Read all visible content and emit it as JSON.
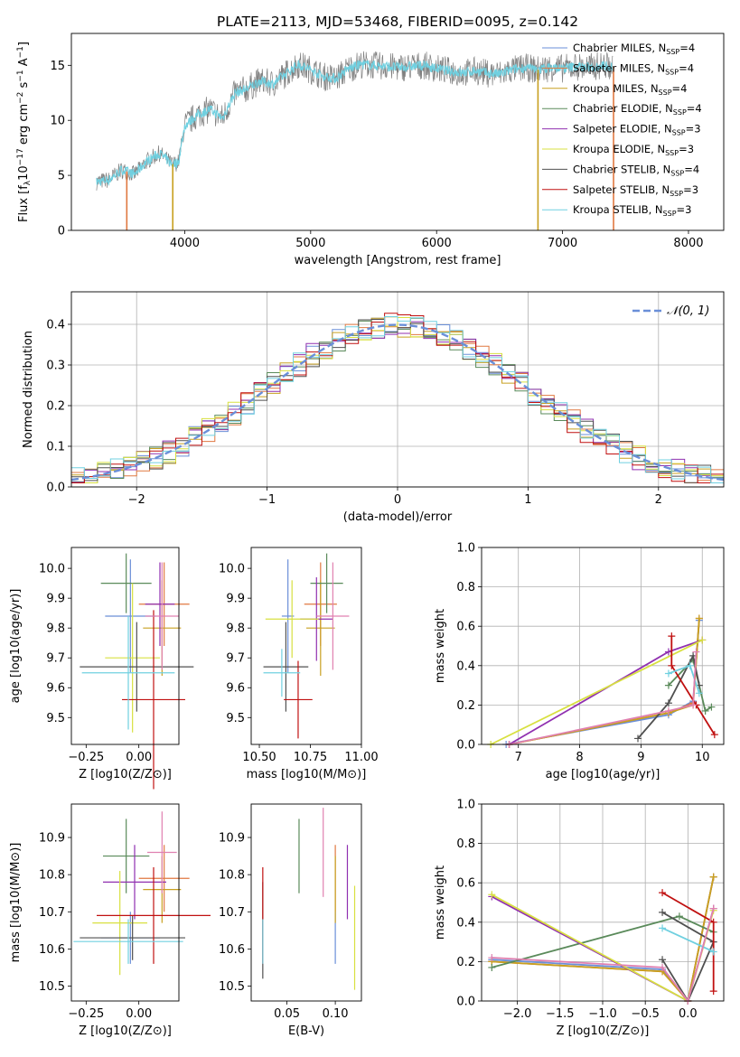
{
  "figure_title": "PLATE=2113, MJD=53468, FIBERID=0095, z=0.142",
  "legend_entries": [
    {
      "name": "Chabrier MILES, N",
      "sub": "SSP",
      "tail": "=4",
      "color": "#6a8fd8"
    },
    {
      "name": "Salpeter MILES, N",
      "sub": "SSP",
      "tail": "=4",
      "color": "#e07840"
    },
    {
      "name": "Kroupa MILES, N",
      "sub": "SSP",
      "tail": "=4",
      "color": "#c8a020"
    },
    {
      "name": "Chabrier ELODIE, N",
      "sub": "SSP",
      "tail": "=4",
      "color": "#5a8a5a"
    },
    {
      "name": "Salpeter ELODIE, N",
      "sub": "SSP",
      "tail": "=3",
      "color": "#9030b0"
    },
    {
      "name": "Kroupa ELODIE, N",
      "sub": "SSP",
      "tail": "=3",
      "color": "#d8e040"
    },
    {
      "name": "Chabrier STELIB, N",
      "sub": "SSP",
      "tail": "=4",
      "color": "#505050"
    },
    {
      "name": "Salpeter STELIB, N",
      "sub": "SSP",
      "tail": "=3",
      "color": "#c01010"
    },
    {
      "name": "Kroupa STELIB, N",
      "sub": "SSP",
      "tail": "=3",
      "color": "#70d0e0"
    }
  ],
  "normal_legend": "𝒩(0, 1)",
  "chart_data": [
    {
      "id": "spectrum",
      "type": "line",
      "xlabel": "wavelength [Angstrom, rest frame]",
      "ylabel": "Flux [f_λ 10^-17 erg cm^-2 s^-1 A^-1]",
      "xlim": [
        3100,
        8280
      ],
      "ylim": [
        0,
        17.9
      ],
      "xticks": [
        "4000",
        "5000",
        "6000",
        "7000",
        "8000"
      ],
      "yticks": [
        "0",
        "5",
        "10",
        "15"
      ],
      "data_color": "#808080",
      "model_color": "#70d0e0",
      "data_points": [
        [
          3300,
          4.4
        ],
        [
          3400,
          4.6
        ],
        [
          3500,
          5.5
        ],
        [
          3600,
          5.1
        ],
        [
          3700,
          6.3
        ],
        [
          3800,
          7.0
        ],
        [
          3900,
          6.0
        ],
        [
          3950,
          6.2
        ],
        [
          4000,
          9.5
        ],
        [
          4100,
          10.5
        ],
        [
          4200,
          11.0
        ],
        [
          4300,
          10.2
        ],
        [
          4400,
          12.5
        ],
        [
          4500,
          12.9
        ],
        [
          4600,
          13.6
        ],
        [
          4700,
          13.3
        ],
        [
          4800,
          14.2
        ],
        [
          4900,
          15.1
        ],
        [
          5000,
          14.6
        ],
        [
          5100,
          14.0
        ],
        [
          5200,
          13.8
        ],
        [
          5300,
          14.7
        ],
        [
          5400,
          15.1
        ],
        [
          5500,
          15.0
        ],
        [
          5600,
          14.9
        ],
        [
          5700,
          14.8
        ],
        [
          5800,
          14.9
        ],
        [
          5900,
          15.0
        ],
        [
          6000,
          14.7
        ],
        [
          6100,
          14.5
        ],
        [
          6200,
          14.3
        ],
        [
          6300,
          14.5
        ],
        [
          6400,
          14.3
        ],
        [
          6500,
          14.2
        ],
        [
          6600,
          14.6
        ],
        [
          6700,
          14.8
        ],
        [
          6800,
          14.6
        ],
        [
          6900,
          14.8
        ],
        [
          7000,
          14.7
        ],
        [
          7100,
          14.9
        ],
        [
          7200,
          14.8
        ],
        [
          7300,
          15.0
        ],
        [
          7400,
          14.9
        ]
      ],
      "dropouts": [
        3540,
        3905,
        6805,
        7405
      ]
    },
    {
      "id": "residuals",
      "type": "histogram",
      "xlabel": "(data-model)/error",
      "ylabel": "Normed distribution",
      "xlim": [
        -2.5,
        2.5
      ],
      "ylim": [
        0,
        0.48
      ],
      "xticks": [
        "−2",
        "−1",
        "0",
        "1",
        "2"
      ],
      "yticks": [
        "0.0",
        "0.1",
        "0.2",
        "0.3",
        "0.4"
      ],
      "bin_width": 0.1,
      "grid": true,
      "legend_position": "top-right"
    },
    {
      "id": "age-vs-Z",
      "type": "errorbar",
      "xlabel": "Z [log10(Z/Z⊙)]",
      "ylabel": "age [log10(age/yr)]",
      "xlim": [
        -0.32,
        0.19
      ],
      "ylim": [
        9.41,
        10.07
      ],
      "xticks": [
        "−0.25",
        "0.00"
      ],
      "yticks": [
        "9.5",
        "9.6",
        "9.7",
        "9.8",
        "9.9",
        "10.0"
      ],
      "points": [
        {
          "x": -0.04,
          "xerr": 0.12,
          "y": 9.84,
          "yerr": 0.19,
          "color": "#6a8fd8"
        },
        {
          "x": 0.12,
          "xerr": 0.12,
          "y": 9.88,
          "yerr": 0.14,
          "color": "#e07840"
        },
        {
          "x": 0.11,
          "xerr": 0.09,
          "y": 9.8,
          "yerr": 0.16,
          "color": "#c8a020"
        },
        {
          "x": -0.06,
          "xerr": 0.12,
          "y": 9.95,
          "yerr": 0.1,
          "color": "#5a8a5a"
        },
        {
          "x": 0.1,
          "xerr": 0.07,
          "y": 9.88,
          "yerr": 0.14,
          "color": "#9030b0"
        },
        {
          "x": -0.03,
          "xerr": 0.13,
          "y": 9.7,
          "yerr": 0.25,
          "color": "#d8e040"
        },
        {
          "x": -0.01,
          "xerr": 0.27,
          "y": 9.67,
          "yerr": 0.15,
          "color": "#505050"
        },
        {
          "x": 0.07,
          "xerr": 0.15,
          "y": 9.56,
          "yerr": 0.3,
          "color": "#c01010"
        },
        {
          "x": -0.05,
          "xerr": 0.22,
          "y": 9.65,
          "yerr": 0.19,
          "color": "#70d0e0"
        },
        {
          "x": 0.11,
          "xerr": 0.08,
          "y": 9.84,
          "yerr": 0.18,
          "color": "#e080b0"
        }
      ]
    },
    {
      "id": "age-vs-mass",
      "type": "errorbar",
      "xlabel": "mass [log10(M/M⊙)]",
      "ylabel": "",
      "xlim": [
        10.46,
        11.0
      ],
      "ylim": [
        9.41,
        10.07
      ],
      "xticks": [
        "10.50",
        "10.75",
        "11.00"
      ],
      "yticks": [
        "9.5",
        "9.6",
        "9.7",
        "9.8",
        "9.9",
        "10.0"
      ],
      "points": [
        {
          "x": 10.64,
          "xerr": 0.03,
          "y": 9.84,
          "yerr": 0.19,
          "color": "#6a8fd8"
        },
        {
          "x": 10.8,
          "xerr": 0.08,
          "y": 9.88,
          "yerr": 0.14,
          "color": "#e07840"
        },
        {
          "x": 10.8,
          "xerr": 0.07,
          "y": 9.8,
          "yerr": 0.16,
          "color": "#c8a020"
        },
        {
          "x": 10.83,
          "xerr": 0.08,
          "y": 9.95,
          "yerr": 0.1,
          "color": "#5a8a5a"
        },
        {
          "x": 10.78,
          "xerr": 0.08,
          "y": 9.83,
          "yerr": 0.14,
          "color": "#9030b0"
        },
        {
          "x": 10.66,
          "xerr": 0.13,
          "y": 9.83,
          "yerr": 0.13,
          "color": "#d8e040"
        },
        {
          "x": 10.63,
          "xerr": 0.11,
          "y": 9.67,
          "yerr": 0.15,
          "color": "#505050"
        },
        {
          "x": 10.69,
          "xerr": 0.07,
          "y": 9.56,
          "yerr": 0.13,
          "color": "#c01010"
        },
        {
          "x": 10.61,
          "xerr": 0.09,
          "y": 9.65,
          "yerr": 0.08,
          "color": "#70d0e0"
        },
        {
          "x": 10.86,
          "xerr": 0.08,
          "y": 9.84,
          "yerr": 0.18,
          "color": "#e080b0"
        }
      ]
    },
    {
      "id": "weight-vs-age",
      "type": "line",
      "xlabel": "age [log10(age/yr)]",
      "ylabel": "mass weight",
      "xlim": [
        6.4,
        10.35
      ],
      "ylim": [
        0,
        1.0
      ],
      "xticks": [
        "7",
        "8",
        "9",
        "10"
      ],
      "yticks": [
        "0.0",
        "0.2",
        "0.4",
        "0.6",
        "0.8",
        "1.0"
      ],
      "grid": true,
      "series": [
        {
          "color": "#6a8fd8",
          "points": [
            [
              6.8,
              0.0
            ],
            [
              9.45,
              0.15
            ],
            [
              9.85,
              0.22
            ],
            [
              9.95,
              0.63
            ]
          ]
        },
        {
          "color": "#e07840",
          "points": [
            [
              6.85,
              0.0
            ],
            [
              9.45,
              0.16
            ],
            [
              9.85,
              0.21
            ],
            [
              9.95,
              0.64
            ]
          ]
        },
        {
          "color": "#c8a020",
          "points": [
            [
              6.85,
              0.0
            ],
            [
              9.45,
              0.16
            ],
            [
              9.85,
              0.2
            ],
            [
              9.95,
              0.64
            ]
          ]
        },
        {
          "color": "#5a8a5a",
          "points": [
            [
              9.45,
              0.3
            ],
            [
              9.85,
              0.43
            ],
            [
              10.05,
              0.17
            ],
            [
              10.15,
              0.19
            ]
          ]
        },
        {
          "color": "#9030b0",
          "points": [
            [
              6.85,
              0.0
            ],
            [
              9.45,
              0.47
            ],
            [
              10.0,
              0.53
            ]
          ]
        },
        {
          "color": "#d8e040",
          "points": [
            [
              6.55,
              0.0
            ],
            [
              10.0,
              0.53
            ]
          ]
        },
        {
          "color": "#505050",
          "points": [
            [
              8.95,
              0.03
            ],
            [
              9.45,
              0.21
            ],
            [
              9.85,
              0.45
            ],
            [
              9.95,
              0.3
            ]
          ]
        },
        {
          "color": "#c01010",
          "points": [
            [
              9.5,
              0.55
            ],
            [
              9.5,
              0.4
            ],
            [
              9.9,
              0.2
            ],
            [
              10.2,
              0.05
            ]
          ]
        },
        {
          "color": "#70d0e0",
          "points": [
            [
              9.45,
              0.36
            ],
            [
              9.8,
              0.4
            ],
            [
              9.95,
              0.26
            ]
          ]
        },
        {
          "color": "#e080b0",
          "points": [
            [
              6.85,
              0.0
            ],
            [
              9.45,
              0.17
            ],
            [
              9.85,
              0.2
            ],
            [
              9.9,
              0.47
            ]
          ]
        }
      ]
    },
    {
      "id": "mass-vs-Z",
      "type": "errorbar",
      "xlabel": "Z [log10(Z/Z⊙)]",
      "ylabel": "mass [log10(M/M⊙)]",
      "xlim": [
        -0.32,
        0.19
      ],
      "ylim": [
        10.46,
        10.99
      ],
      "xticks": [
        "−0.25",
        "0.00"
      ],
      "yticks": [
        "10.5",
        "10.6",
        "10.7",
        "10.8",
        "10.9"
      ],
      "points": [
        {
          "x": -0.04,
          "xerr": 0.14,
          "y": 10.63,
          "yerr": 0.07,
          "color": "#6a8fd8"
        },
        {
          "x": 0.12,
          "xerr": 0.12,
          "y": 10.79,
          "yerr": 0.09,
          "color": "#e07840"
        },
        {
          "x": 0.11,
          "xerr": 0.09,
          "y": 10.76,
          "yerr": 0.09,
          "color": "#c8a020"
        },
        {
          "x": -0.06,
          "xerr": 0.11,
          "y": 10.85,
          "yerr": 0.1,
          "color": "#5a8a5a"
        },
        {
          "x": -0.02,
          "xerr": 0.15,
          "y": 10.78,
          "yerr": 0.1,
          "color": "#9030b0"
        },
        {
          "x": -0.09,
          "xerr": 0.13,
          "y": 10.67,
          "yerr": 0.14,
          "color": "#d8e040"
        },
        {
          "x": -0.03,
          "xerr": 0.25,
          "y": 10.63,
          "yerr": 0.06,
          "color": "#505050"
        },
        {
          "x": 0.07,
          "xerr": 0.27,
          "y": 10.69,
          "yerr": 0.13,
          "color": "#c01010"
        },
        {
          "x": -0.05,
          "xerr": 0.26,
          "y": 10.62,
          "yerr": 0.06,
          "color": "#70d0e0"
        },
        {
          "x": 0.11,
          "xerr": 0.07,
          "y": 10.86,
          "yerr": 0.11,
          "color": "#e080b0"
        }
      ]
    },
    {
      "id": "mass-vs-EBV",
      "type": "errorbar",
      "xlabel": "E(B-V)",
      "ylabel": "",
      "xlim": [
        0.013,
        0.127
      ],
      "ylim": [
        10.46,
        10.99
      ],
      "xticks": [
        "0.05",
        "0.10"
      ],
      "yticks": [
        "10.5",
        "10.6",
        "10.7",
        "10.8",
        "10.9"
      ],
      "points": [
        {
          "x": 0.1,
          "xerr": 0,
          "y": 10.63,
          "yerr": 0.07,
          "color": "#6a8fd8"
        },
        {
          "x": 0.1,
          "xerr": 0,
          "y": 10.79,
          "yerr": 0.09,
          "color": "#e07840"
        },
        {
          "x": 0.1,
          "xerr": 0,
          "y": 10.76,
          "yerr": 0.09,
          "color": "#c8a020"
        },
        {
          "x": 0.0625,
          "xerr": 0,
          "y": 10.85,
          "yerr": 0.1,
          "color": "#5a8a5a"
        },
        {
          "x": 0.1125,
          "xerr": 0,
          "y": 10.78,
          "yerr": 0.1,
          "color": "#9030b0"
        },
        {
          "x": 0.12,
          "xerr": 0,
          "y": 10.63,
          "yerr": 0.14,
          "color": "#d8e040"
        },
        {
          "x": 0.025,
          "xerr": 0,
          "y": 10.65,
          "yerr": 0.13,
          "color": "#505050"
        },
        {
          "x": 0.025,
          "xerr": 0,
          "y": 10.69,
          "yerr": 0.13,
          "color": "#c01010"
        },
        {
          "x": 0.025,
          "xerr": 0,
          "y": 10.62,
          "yerr": 0.06,
          "color": "#70d0e0"
        },
        {
          "x": 0.0875,
          "xerr": 0,
          "y": 10.86,
          "yerr": 0.12,
          "color": "#e080b0"
        }
      ]
    },
    {
      "id": "weight-vs-Z",
      "type": "line",
      "xlabel": "Z [log10(Z/Z⊙)]",
      "ylabel": "mass weight",
      "xlim": [
        -2.42,
        0.42
      ],
      "ylim": [
        0,
        1.0
      ],
      "xticks": [
        "−2.0",
        "−1.5",
        "−1.0",
        "−0.5",
        "0.0"
      ],
      "yticks": [
        "0.0",
        "0.2",
        "0.4",
        "0.6",
        "0.8",
        "1.0"
      ],
      "grid": true,
      "series": [
        {
          "color": "#6a8fd8",
          "points": [
            [
              -2.3,
              0.21
            ],
            [
              -0.3,
              0.16
            ],
            [
              0.0,
              0.0
            ],
            [
              0.3,
              0.63
            ]
          ]
        },
        {
          "color": "#e07840",
          "points": [
            [
              -2.3,
              0.2
            ],
            [
              -0.3,
              0.15
            ],
            [
              0.0,
              0.0
            ],
            [
              0.3,
              0.63
            ]
          ]
        },
        {
          "color": "#c8a020",
          "points": [
            [
              -2.3,
              0.2
            ],
            [
              -0.3,
              0.15
            ],
            [
              0.0,
              0.0
            ],
            [
              0.3,
              0.63
            ]
          ]
        },
        {
          "color": "#5a8a5a",
          "points": [
            [
              -2.3,
              0.17
            ],
            [
              -0.1,
              0.43
            ],
            [
              0.3,
              0.35
            ]
          ]
        },
        {
          "color": "#9030b0",
          "points": [
            [
              -2.3,
              0.53
            ],
            [
              0.0,
              0.0
            ],
            [
              0.3,
              0.47
            ]
          ]
        },
        {
          "color": "#d8e040",
          "points": [
            [
              -2.3,
              0.54
            ],
            [
              0.0,
              0.0
            ],
            [
              0.3,
              0.46
            ]
          ]
        },
        {
          "color": "#505050",
          "points": [
            [
              -0.3,
              0.45
            ],
            [
              0.3,
              0.3
            ],
            [
              0.0,
              0.0
            ],
            [
              -0.3,
              0.21
            ]
          ]
        },
        {
          "color": "#c01010",
          "points": [
            [
              -0.3,
              0.55
            ],
            [
              0.3,
              0.4
            ],
            [
              0.3,
              0.05
            ]
          ]
        },
        {
          "color": "#70d0e0",
          "points": [
            [
              -0.3,
              0.37
            ],
            [
              0.3,
              0.25
            ]
          ]
        },
        {
          "color": "#e080b0",
          "points": [
            [
              -2.3,
              0.22
            ],
            [
              -0.3,
              0.17
            ],
            [
              0.0,
              0.0
            ],
            [
              0.3,
              0.47
            ]
          ]
        }
      ]
    }
  ]
}
